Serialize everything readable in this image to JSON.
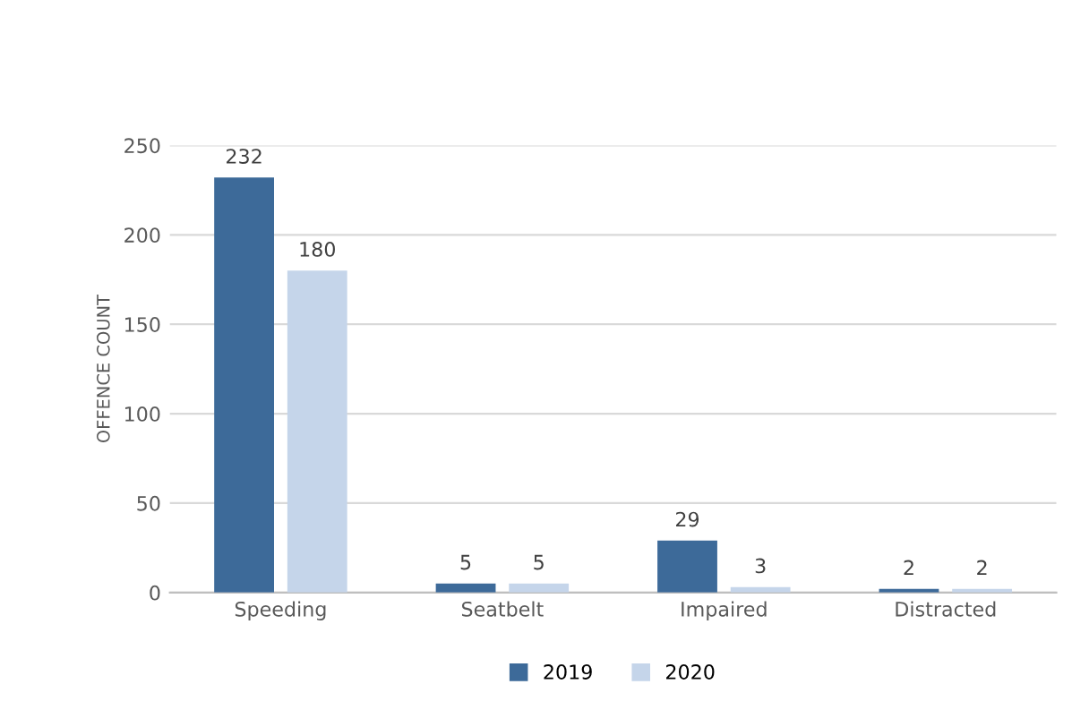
{
  "chart_data": {
    "type": "bar",
    "ylabel": "OFFENCE COUNT",
    "categories": [
      "Speeding",
      "Seatbelt",
      "Impaired",
      "Distracted"
    ],
    "series": [
      {
        "name": "2019",
        "color": "#3d6a99",
        "values": [
          232,
          5,
          29,
          2
        ]
      },
      {
        "name": "2020",
        "color": "#c5d5ea",
        "values": [
          180,
          5,
          3,
          2
        ]
      }
    ],
    "ylim": [
      0,
      250
    ],
    "yticks": [
      0,
      50,
      100,
      150,
      200,
      250
    ],
    "grid": "y",
    "legend": "bottom",
    "data_labels": true
  }
}
